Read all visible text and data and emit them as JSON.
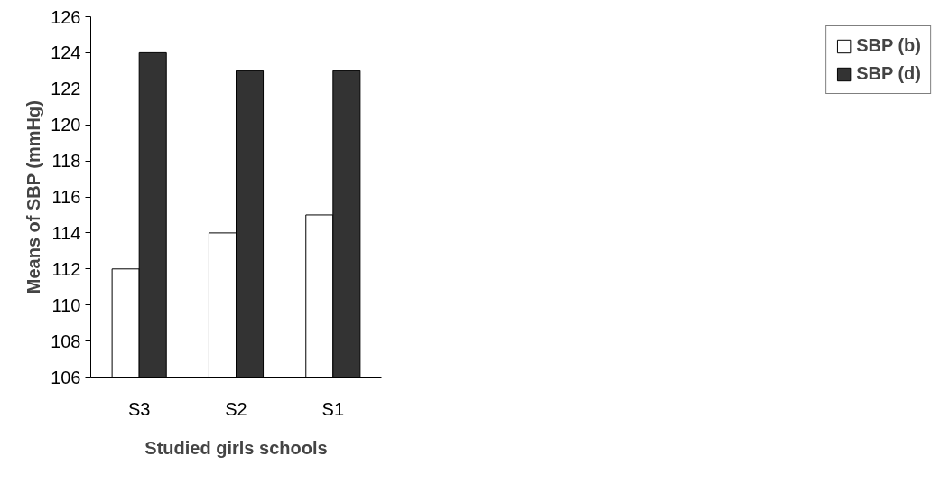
{
  "chart_data": {
    "type": "bar",
    "xlabel": "Studied girls schools",
    "ylabel": "Means of SBP (mmHg)",
    "categories": [
      "S3",
      "S2",
      "S1"
    ],
    "series": [
      {
        "name": "SBP (b)",
        "color": "#ffffff",
        "values": [
          112,
          114,
          115
        ]
      },
      {
        "name": "SBP (d)",
        "color": "#333333",
        "values": [
          124,
          123,
          123
        ]
      }
    ],
    "ylim": [
      106,
      126
    ],
    "yticks": [
      106,
      108,
      110,
      112,
      114,
      116,
      118,
      120,
      122,
      124,
      126
    ],
    "legend": "right",
    "grid": false
  }
}
